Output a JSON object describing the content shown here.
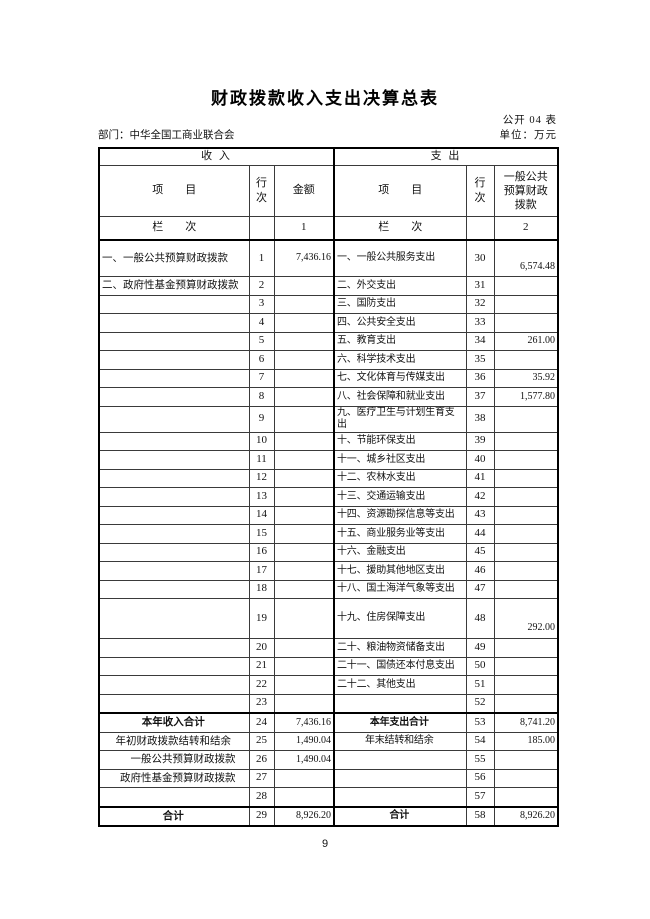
{
  "page": {
    "title": "财政拨款收入支出决算总表",
    "form_no": "公开 04 表",
    "department": "部门：中华全国工商业联合会",
    "unit": "单位：万元",
    "page_number": "9"
  },
  "table": {
    "header": {
      "income": "收 入",
      "expense": "支 出",
      "item": "项　　目",
      "line": "行次",
      "amount": "金额",
      "budget": "一般公共预算财政拨款",
      "lanci": "栏　　次",
      "col1": "1",
      "col2": "2"
    },
    "rows": [
      {
        "t": "tall",
        "li": "一、一般公共预算财政拨款",
        "ln": "1",
        "amt": "7,436.16",
        "ei": "一、一般公共服务支出",
        "rn": "30",
        "bud": "6,574.48"
      },
      {
        "t": "",
        "li": "二、政府性基金预算财政拨款",
        "ln": "2",
        "amt": "",
        "ei": "二、外交支出",
        "rn": "31",
        "bud": ""
      },
      {
        "t": "",
        "li": "",
        "ln": "3",
        "amt": "",
        "ei": "三、国防支出",
        "rn": "32",
        "bud": ""
      },
      {
        "t": "",
        "li": "",
        "ln": "4",
        "amt": "",
        "ei": "四、公共安全支出",
        "rn": "33",
        "bud": ""
      },
      {
        "t": "",
        "li": "",
        "ln": "5",
        "amt": "",
        "ei": "五、教育支出",
        "rn": "34",
        "bud": "261.00"
      },
      {
        "t": "",
        "li": "",
        "ln": "6",
        "amt": "",
        "ei": "六、科学技术支出",
        "rn": "35",
        "bud": ""
      },
      {
        "t": "",
        "li": "",
        "ln": "7",
        "amt": "",
        "ei": "七、文化体育与传媒支出",
        "rn": "36",
        "bud": "35.92"
      },
      {
        "t": "",
        "li": "",
        "ln": "8",
        "amt": "",
        "ei": "八、社会保障和就业支出",
        "rn": "37",
        "bud": "1,577.80"
      },
      {
        "t": "",
        "li": "",
        "ln": "9",
        "amt": "",
        "ei": "九、医疗卫生与计划生育支出",
        "rn": "38",
        "bud": ""
      },
      {
        "t": "",
        "li": "",
        "ln": "10",
        "amt": "",
        "ei": "十、节能环保支出",
        "rn": "39",
        "bud": ""
      },
      {
        "t": "",
        "li": "",
        "ln": "11",
        "amt": "",
        "ei": "十一、城乡社区支出",
        "rn": "40",
        "bud": ""
      },
      {
        "t": "",
        "li": "",
        "ln": "12",
        "amt": "",
        "ei": "十二、农林水支出",
        "rn": "41",
        "bud": ""
      },
      {
        "t": "",
        "li": "",
        "ln": "13",
        "amt": "",
        "ei": "十三、交通运输支出",
        "rn": "42",
        "bud": ""
      },
      {
        "t": "",
        "li": "",
        "ln": "14",
        "amt": "",
        "ei": "十四、资源勘探信息等支出",
        "rn": "43",
        "bud": ""
      },
      {
        "t": "",
        "li": "",
        "ln": "15",
        "amt": "",
        "ei": "十五、商业服务业等支出",
        "rn": "44",
        "bud": ""
      },
      {
        "t": "",
        "li": "",
        "ln": "16",
        "amt": "",
        "ei": "十六、金融支出",
        "rn": "45",
        "bud": ""
      },
      {
        "t": "",
        "li": "",
        "ln": "17",
        "amt": "",
        "ei": "十七、援助其他地区支出",
        "rn": "46",
        "bud": ""
      },
      {
        "t": "",
        "li": "",
        "ln": "18",
        "amt": "",
        "ei": "十八、国土海洋气象等支出",
        "rn": "47",
        "bud": ""
      },
      {
        "t": "tall2",
        "li": "",
        "ln": "19",
        "amt": "",
        "ei": "十九、住房保障支出",
        "rn": "48",
        "bud": "292.00"
      },
      {
        "t": "",
        "li": "",
        "ln": "20",
        "amt": "",
        "ei": "二十、粮油物资储备支出",
        "rn": "49",
        "bud": ""
      },
      {
        "t": "",
        "li": "",
        "ln": "21",
        "amt": "",
        "ei": "二十一、国债还本付息支出",
        "rn": "50",
        "bud": ""
      },
      {
        "t": "",
        "li": "",
        "ln": "22",
        "amt": "",
        "ei": "二十二、其他支出",
        "rn": "51",
        "bud": ""
      },
      {
        "t": "",
        "li": "",
        "ln": "23",
        "amt": "",
        "ei": "",
        "rn": "52",
        "bud": ""
      },
      {
        "t": "sum",
        "li": "本年收入合计",
        "ln": "24",
        "amt": "7,436.16",
        "ei": "本年支出合计",
        "rn": "53",
        "bud": "8,741.20"
      },
      {
        "t": "centerl",
        "li": "年初财政拨款结转和结余",
        "ln": "25",
        "amt": "1,490.04",
        "ei": "年末结转和结余",
        "rn": "54",
        "bud": "185.00"
      },
      {
        "t": "indent",
        "li": "一般公共预算财政拨款",
        "ln": "26",
        "amt": "1,490.04",
        "ei": "",
        "rn": "55",
        "bud": ""
      },
      {
        "t": "indent",
        "li": "政府性基金预算财政拨款",
        "ln": "27",
        "amt": "",
        "ei": "",
        "rn": "56",
        "bud": ""
      },
      {
        "t": "",
        "li": "",
        "ln": "28",
        "amt": "",
        "ei": "",
        "rn": "57",
        "bud": ""
      },
      {
        "t": "sum",
        "li": "合计",
        "ln": "29",
        "amt": "8,926.20",
        "ei": "合计",
        "rn": "58",
        "bud": "8,926.20"
      }
    ]
  }
}
